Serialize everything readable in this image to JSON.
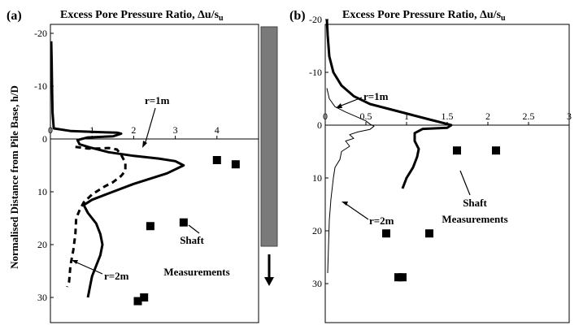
{
  "chart_data": [
    {
      "type": "line",
      "panel_label": "(a)",
      "title": "Excess Pore Pressure Ratio, Δu/s",
      "title_subscript": "u",
      "ylabel": "Normalised Distance from Pile Base, h/D",
      "xlim": [
        0,
        5
      ],
      "ylim": [
        -20,
        30
      ],
      "x_ticks": [
        "0",
        "1",
        "2",
        "3",
        "4"
      ],
      "x_tick_values": [
        0,
        1,
        2,
        3,
        4
      ],
      "y_ticks": [
        "-20",
        "-10",
        "0",
        "10",
        "20",
        "30"
      ],
      "y_tick_values": [
        -20,
        -10,
        0,
        10,
        20,
        30
      ],
      "grid": false,
      "series": [
        {
          "name": "r=1m",
          "style": "thick-solid",
          "x": [
            0.02,
            0.03,
            0.04,
            0.05,
            0.08,
            0.5,
            1.2,
            1.6,
            1.7,
            1.5,
            0.9,
            0.65,
            0.7,
            0.95,
            1.4,
            2.0,
            2.6,
            3.0,
            3.2,
            2.8,
            2.0,
            1.5,
            1.0,
            0.8,
            0.9,
            1.1,
            1.2,
            1.25,
            1.2,
            1.1,
            1.0,
            0.95,
            0.9
          ],
          "y": [
            -18.5,
            -15,
            -10,
            -5,
            -2,
            -1.5,
            -1.3,
            -1.2,
            -1.0,
            -0.5,
            -0.3,
            0.2,
            1.0,
            1.6,
            2.5,
            3.2,
            3.7,
            4.2,
            5,
            6.5,
            8.5,
            10,
            11.5,
            12.5,
            14,
            16,
            18,
            20,
            22,
            24,
            26,
            28,
            30
          ]
        },
        {
          "name": "r=2m",
          "style": "thick-dashed",
          "x": [
            0.6,
            0.9,
            1.2,
            1.4,
            1.6,
            1.7,
            1.8,
            1.8,
            1.7,
            1.5,
            1.3,
            1.0,
            0.8,
            0.7,
            0.62,
            0.6,
            0.55,
            0.48,
            0.45,
            0.4
          ],
          "y": [
            1.5,
            1.8,
            1.8,
            1.7,
            2.0,
            3.0,
            4.5,
            6.0,
            7.0,
            8.2,
            9.0,
            10.5,
            12.0,
            13.5,
            15,
            18,
            21,
            24,
            27,
            28
          ]
        }
      ],
      "scatter": {
        "name": "Shaft Measurements",
        "x": [
          4.0,
          4.45,
          2.4,
          3.2,
          2.25,
          2.1
        ],
        "y": [
          4.0,
          4.8,
          16.5,
          15.8,
          30.0,
          30.7
        ]
      },
      "annotations": [
        "r=1m",
        "r=2m",
        "Shaft",
        "Measurements"
      ]
    },
    {
      "type": "line",
      "panel_label": "(b)",
      "title": "Excess Pore Pressure Ratio, Δu/s",
      "title_subscript": "u",
      "ylabel": "",
      "xlim": [
        0,
        3
      ],
      "ylim": [
        -20,
        30
      ],
      "x_ticks": [
        "0",
        "0.5",
        "1",
        "1.5",
        "2",
        "2.5",
        "3"
      ],
      "x_tick_values": [
        0,
        0.5,
        1,
        1.5,
        2,
        2.5,
        3
      ],
      "y_ticks": [
        "-20",
        "-10",
        "0",
        "10",
        "20",
        "30"
      ],
      "y_tick_values": [
        -20,
        -10,
        0,
        10,
        20,
        30
      ],
      "grid": false,
      "series": [
        {
          "name": "r=1m",
          "style": "thick-solid",
          "x": [
            0.02,
            0.03,
            0.05,
            0.1,
            0.2,
            0.35,
            0.55,
            0.8,
            1.05,
            1.3,
            1.48,
            1.55,
            1.5,
            1.2,
            1.1,
            1.1,
            1.15,
            1.13,
            1.08,
            1.0,
            0.95
          ],
          "y": [
            -20,
            -17,
            -13,
            -10,
            -7.5,
            -5.5,
            -4,
            -3,
            -2,
            -1,
            -0.3,
            0,
            0.5,
            0.7,
            1.5,
            3,
            4.5,
            6,
            8,
            10,
            12
          ]
        },
        {
          "name": "r=2m",
          "style": "thin-solid",
          "x": [
            0.02,
            0.05,
            0.12,
            0.25,
            0.4,
            0.5,
            0.55,
            0.6,
            0.55,
            0.4,
            0.3,
            0.35,
            0.25,
            0.3,
            0.2,
            0.18,
            0.12,
            0.1,
            0.07,
            0.05,
            0.04,
            0.03
          ],
          "y": [
            -7,
            -5,
            -3.5,
            -2.5,
            -1.5,
            -0.8,
            -0.2,
            0.2,
            0.8,
            1.3,
            1.8,
            2.5,
            3,
            4,
            5,
            6.5,
            8,
            10,
            14,
            18,
            23,
            28
          ]
        }
      ],
      "scatter": {
        "name": "Shaft Measurements",
        "x": [
          1.62,
          2.1,
          0.75,
          1.28,
          0.9,
          0.95
        ],
        "y": [
          4.8,
          4.8,
          20.5,
          20.5,
          28.8,
          28.8
        ]
      },
      "annotations": [
        "r=1m",
        "r=2m",
        "Shaft",
        "Measurements"
      ]
    }
  ]
}
